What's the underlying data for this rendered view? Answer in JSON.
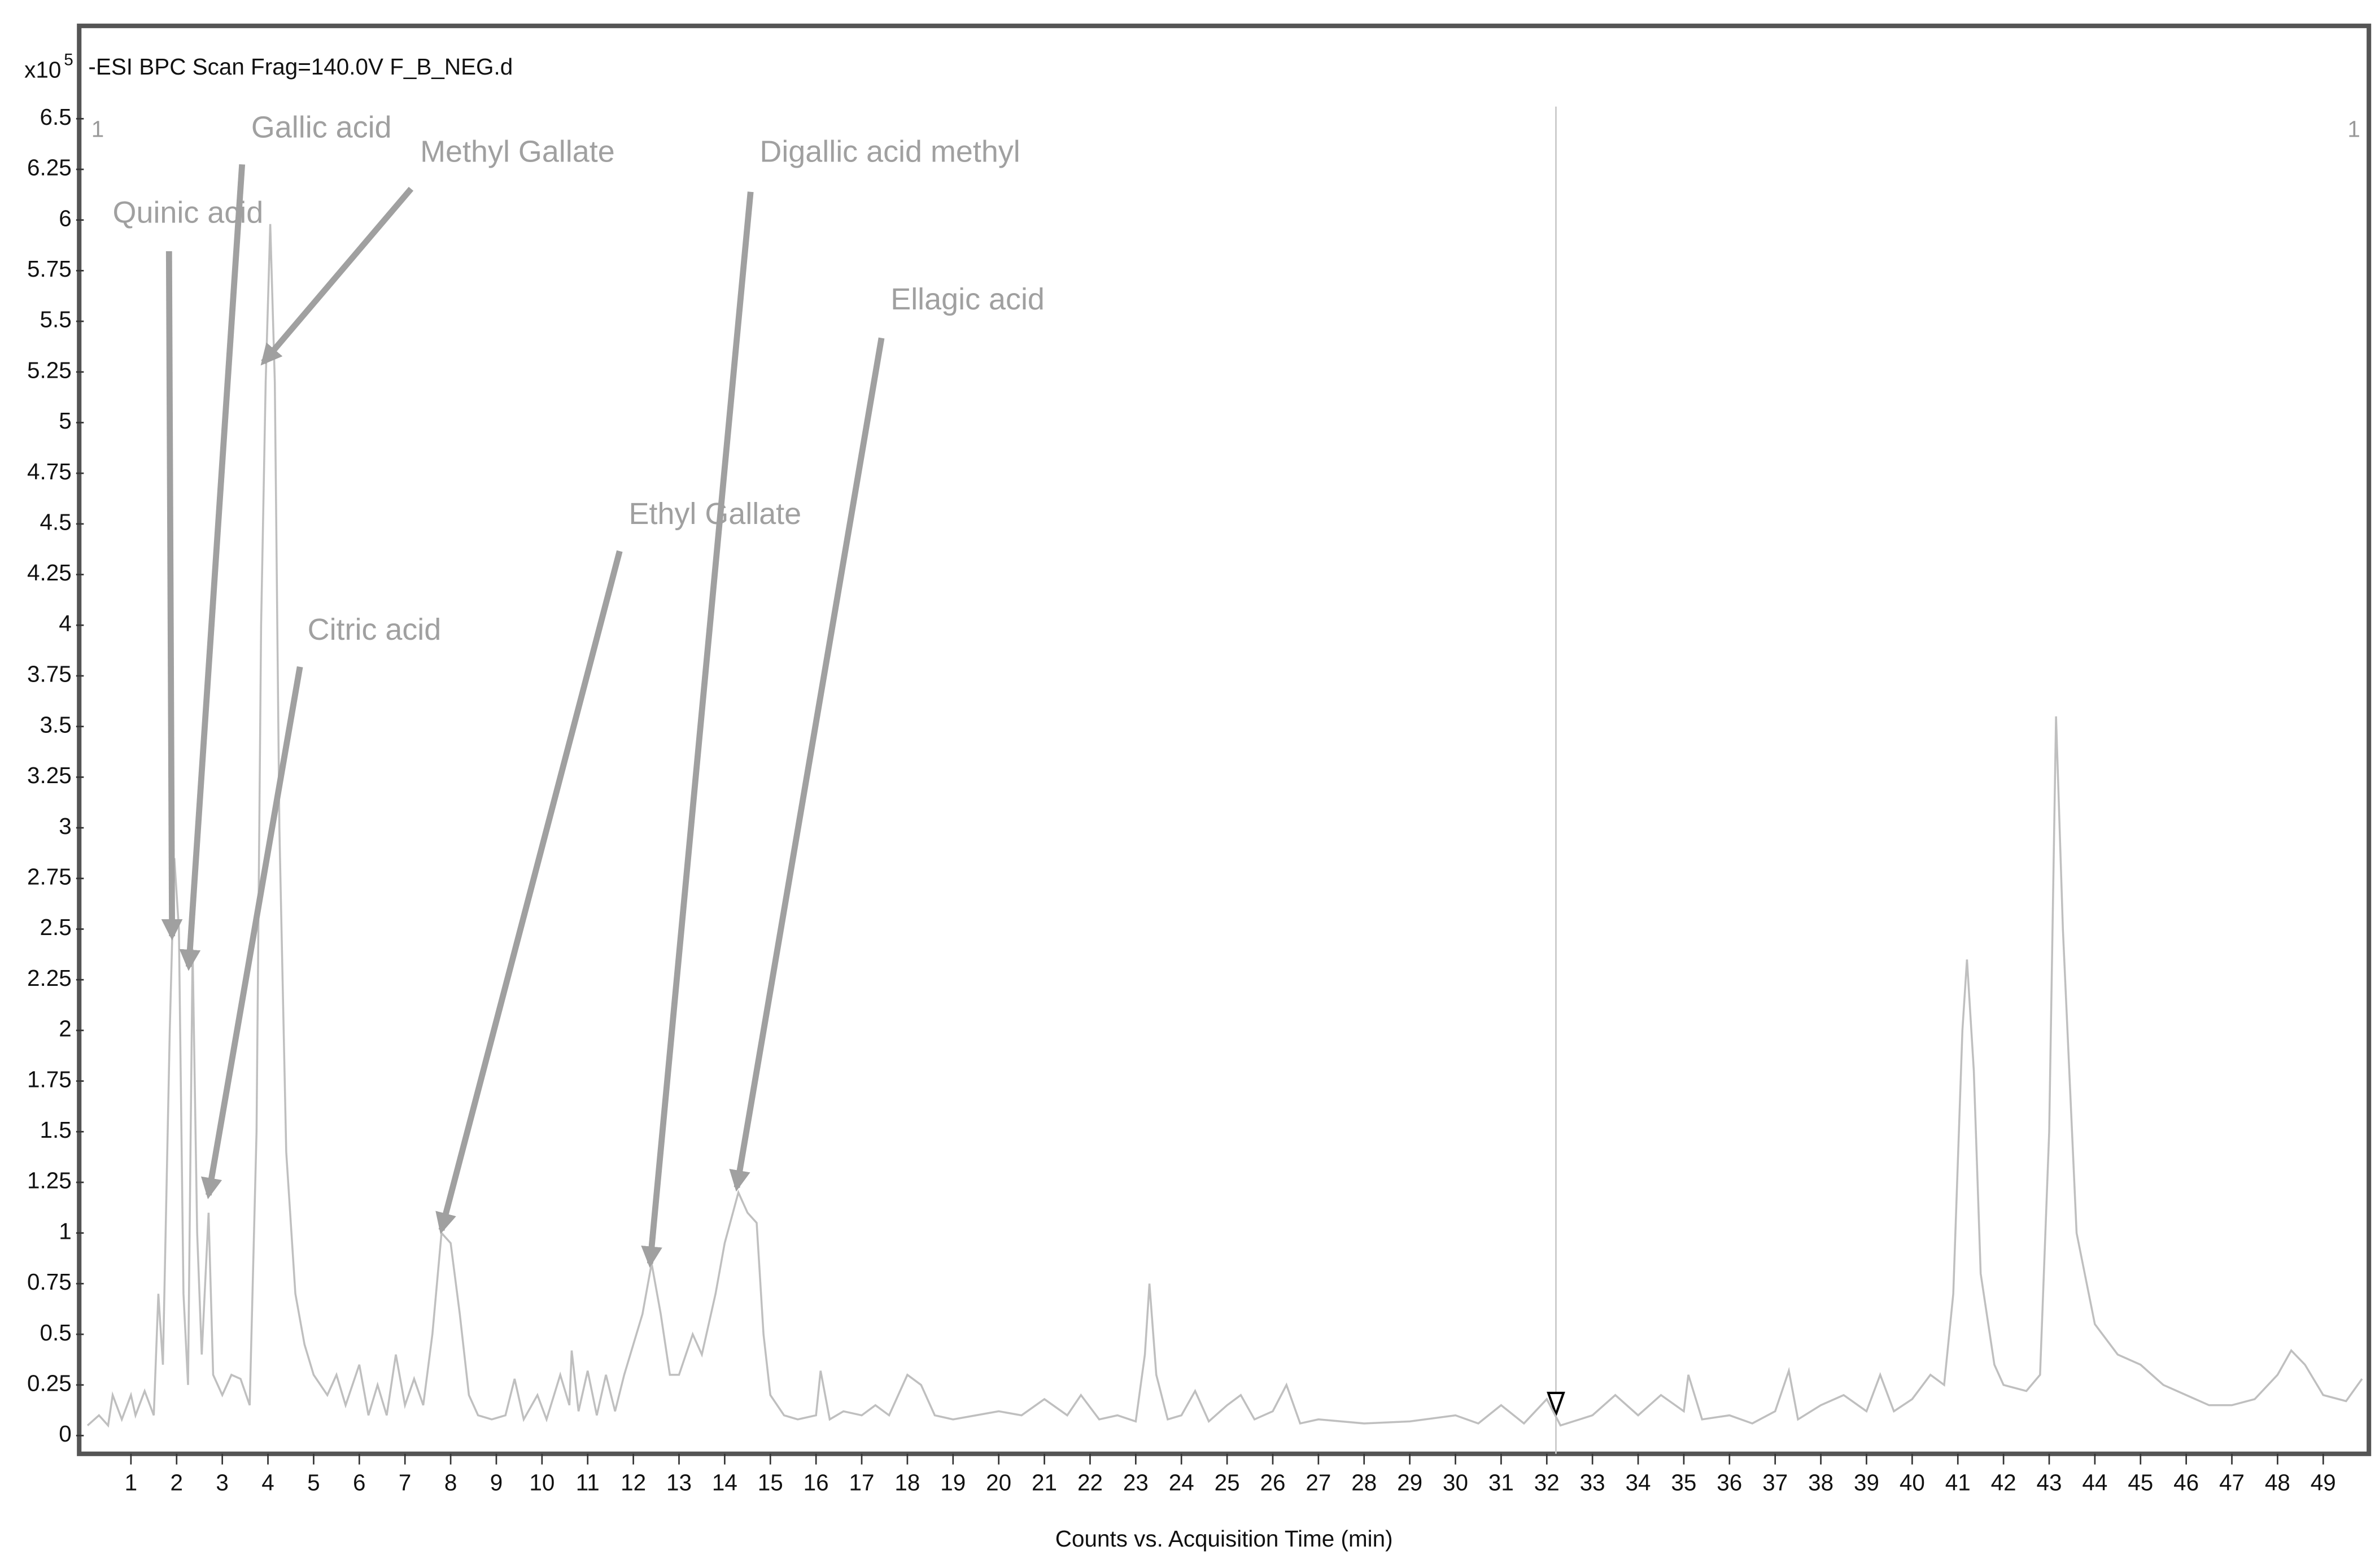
{
  "chart_data": {
    "type": "line",
    "title": "-ESI BPC Scan Frag=140.0V F_B_NEG.d",
    "y_scale_label": "x10",
    "y_scale_exponent": "5",
    "xlabel": "Counts vs. Acquisition Time (min)",
    "scan_labels": [
      "1",
      "1"
    ],
    "xlim": [
      0,
      49.9
    ],
    "ylim": [
      -0.09,
      6.56
    ],
    "xticks": [
      1,
      2,
      3,
      4,
      5,
      6,
      7,
      8,
      9,
      10,
      11,
      12,
      13,
      14,
      15,
      16,
      17,
      18,
      19,
      20,
      21,
      22,
      23,
      24,
      25,
      26,
      27,
      28,
      29,
      30,
      31,
      32,
      33,
      34,
      35,
      36,
      37,
      38,
      39,
      40,
      41,
      42,
      43,
      44,
      45,
      46,
      47,
      48,
      49
    ],
    "yticks": [
      0,
      0.25,
      0.5,
      0.75,
      1,
      1.25,
      1.5,
      1.75,
      2,
      2.25,
      2.5,
      2.75,
      3,
      3.25,
      3.5,
      3.75,
      4,
      4.25,
      4.5,
      4.75,
      5,
      5.25,
      5.5,
      5.75,
      6,
      6.25,
      6.5
    ],
    "cursor_x": 32.2,
    "annotations": [
      {
        "text": "Quinic acid"
      },
      {
        "text": "Gallic acid"
      },
      {
        "text": "Methyl Gallate"
      },
      {
        "text": "Digallic acid methyl"
      },
      {
        "text": "Ellagic acid"
      },
      {
        "text": "Ethyl Gallate"
      },
      {
        "text": "Citric acid"
      }
    ],
    "series": [
      {
        "name": "BPC",
        "color": "#bfbfbf",
        "x": [
          0.05,
          0.3,
          0.5,
          0.6,
          0.8,
          1.0,
          1.1,
          1.3,
          1.5,
          1.6,
          1.7,
          1.85,
          1.95,
          2.05,
          2.15,
          2.25,
          2.35,
          2.45,
          2.55,
          2.7,
          2.8,
          3.0,
          3.2,
          3.4,
          3.6,
          3.75,
          3.85,
          3.95,
          4.05,
          4.15,
          4.25,
          4.4,
          4.6,
          4.8,
          5.0,
          5.3,
          5.5,
          5.7,
          6.0,
          6.2,
          6.4,
          6.6,
          6.8,
          7.0,
          7.2,
          7.4,
          7.6,
          7.8,
          8.0,
          8.2,
          8.4,
          8.6,
          8.9,
          9.2,
          9.4,
          9.6,
          9.9,
          10.1,
          10.4,
          10.6,
          10.65,
          10.8,
          11.0,
          11.2,
          11.4,
          11.6,
          11.8,
          12.0,
          12.2,
          12.4,
          12.6,
          12.8,
          13.0,
          13.3,
          13.5,
          13.8,
          14.0,
          14.3,
          14.5,
          14.7,
          14.85,
          15.0,
          15.3,
          15.6,
          16.0,
          16.1,
          16.3,
          16.6,
          17.0,
          17.3,
          17.6,
          18.0,
          18.3,
          18.6,
          19.0,
          19.5,
          20.0,
          20.5,
          21.0,
          21.5,
          21.8,
          22.2,
          22.6,
          23.0,
          23.2,
          23.3,
          23.45,
          23.7,
          24.0,
          24.3,
          24.6,
          25.0,
          25.3,
          25.6,
          26.0,
          26.3,
          26.6,
          27.0,
          28.0,
          29.0,
          30.0,
          30.5,
          31.0,
          31.5,
          32.0,
          32.3,
          33.0,
          33.5,
          34.0,
          34.5,
          35.0,
          35.1,
          35.4,
          36.0,
          36.5,
          37.0,
          37.3,
          37.5,
          38.0,
          38.5,
          39.0,
          39.3,
          39.6,
          40.0,
          40.4,
          40.7,
          40.9,
          41.1,
          41.2,
          41.35,
          41.5,
          41.8,
          42.0,
          42.5,
          42.8,
          43.0,
          43.15,
          43.3,
          43.6,
          44.0,
          44.5,
          45.0,
          45.5,
          46.0,
          46.5,
          47.0,
          47.5,
          48.0,
          48.3,
          48.6,
          49.0,
          49.5,
          49.85
        ],
        "values": [
          0.05,
          0.1,
          0.05,
          0.2,
          0.08,
          0.2,
          0.1,
          0.22,
          0.1,
          0.7,
          0.35,
          2.0,
          2.85,
          2.5,
          0.7,
          0.25,
          2.4,
          1.0,
          0.4,
          1.1,
          0.3,
          0.2,
          0.3,
          0.28,
          0.15,
          1.5,
          4.0,
          5.2,
          5.98,
          5.2,
          3.0,
          1.4,
          0.7,
          0.45,
          0.3,
          0.2,
          0.3,
          0.15,
          0.35,
          0.1,
          0.25,
          0.1,
          0.4,
          0.15,
          0.28,
          0.15,
          0.5,
          1.0,
          0.95,
          0.6,
          0.2,
          0.1,
          0.08,
          0.1,
          0.28,
          0.08,
          0.2,
          0.08,
          0.3,
          0.15,
          0.42,
          0.12,
          0.32,
          0.1,
          0.3,
          0.12,
          0.3,
          0.45,
          0.6,
          0.85,
          0.6,
          0.3,
          0.3,
          0.5,
          0.4,
          0.7,
          0.95,
          1.2,
          1.1,
          1.05,
          0.5,
          0.2,
          0.1,
          0.08,
          0.1,
          0.32,
          0.08,
          0.12,
          0.1,
          0.15,
          0.1,
          0.3,
          0.25,
          0.1,
          0.08,
          0.1,
          0.12,
          0.1,
          0.18,
          0.1,
          0.2,
          0.08,
          0.1,
          0.07,
          0.4,
          0.75,
          0.3,
          0.08,
          0.1,
          0.22,
          0.07,
          0.15,
          0.2,
          0.08,
          0.12,
          0.25,
          0.06,
          0.08,
          0.06,
          0.07,
          0.1,
          0.06,
          0.15,
          0.06,
          0.18,
          0.05,
          0.1,
          0.2,
          0.1,
          0.2,
          0.12,
          0.3,
          0.08,
          0.1,
          0.06,
          0.12,
          0.32,
          0.08,
          0.15,
          0.2,
          0.12,
          0.3,
          0.12,
          0.18,
          0.3,
          0.25,
          0.7,
          2.0,
          2.35,
          1.8,
          0.8,
          0.35,
          0.25,
          0.22,
          0.3,
          1.5,
          3.55,
          2.5,
          1.0,
          0.55,
          0.4,
          0.35,
          0.25,
          0.2,
          0.15,
          0.15,
          0.18,
          0.3,
          0.42,
          0.35,
          0.2,
          0.17,
          0.28
        ]
      }
    ]
  }
}
